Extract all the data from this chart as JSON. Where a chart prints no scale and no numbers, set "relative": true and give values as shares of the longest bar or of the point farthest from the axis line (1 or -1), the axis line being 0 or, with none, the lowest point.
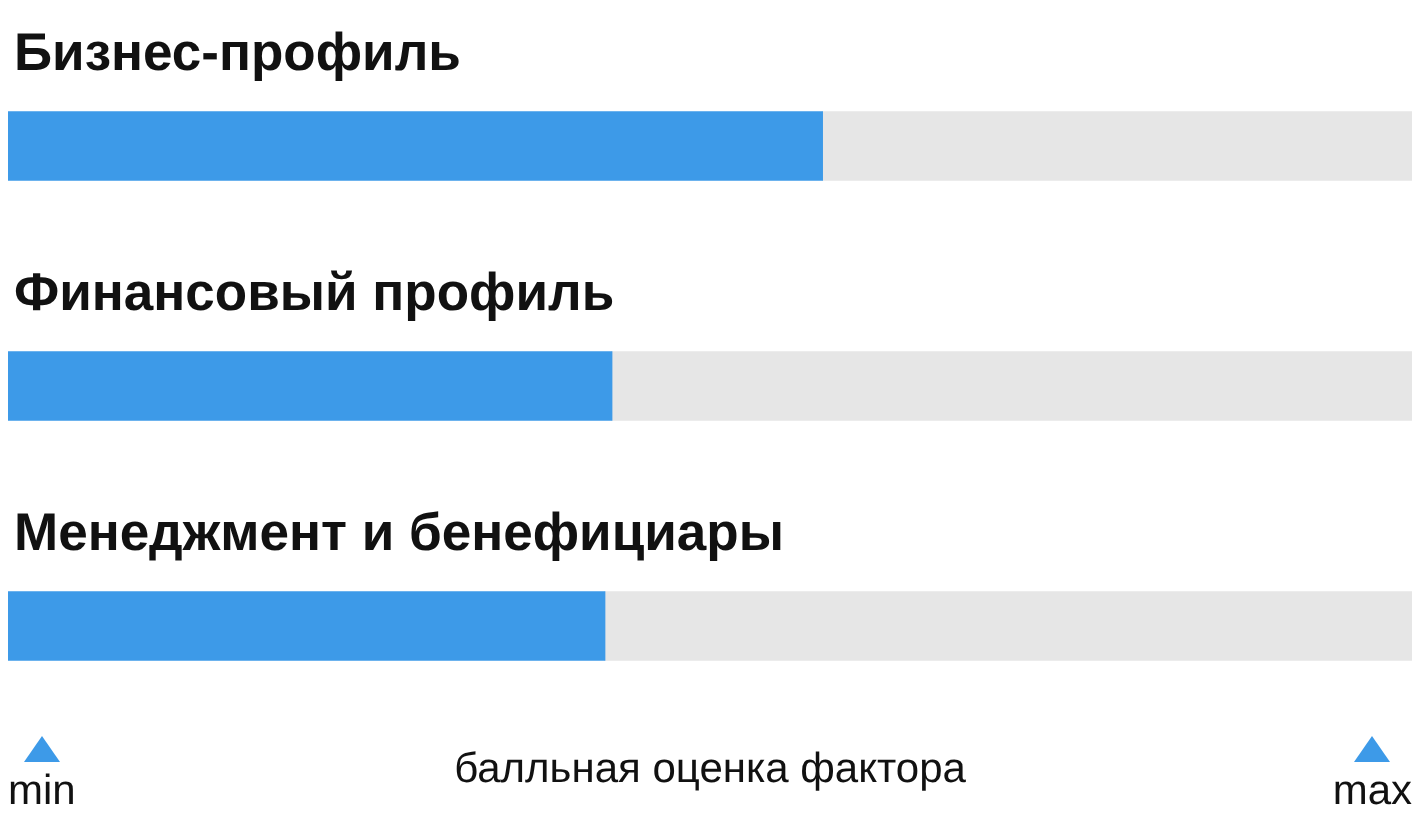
{
  "chart_data": {
    "type": "bar",
    "orientation": "horizontal",
    "relative": true,
    "stacked": true,
    "categories": [
      "Бизнес-профиль",
      "Финансовый профиль",
      "Менеджмент и бенефициары"
    ],
    "series": [
      {
        "color": "#3d9ae8",
        "values": [
          0.58,
          0.43,
          0.425
        ]
      },
      {
        "color": "#e6e6e6",
        "values": [
          0.42,
          0.57,
          0.575
        ]
      }
    ],
    "xlabel": "балльная оценка фактора",
    "annotations": [
      "min",
      "max"
    ]
  }
}
